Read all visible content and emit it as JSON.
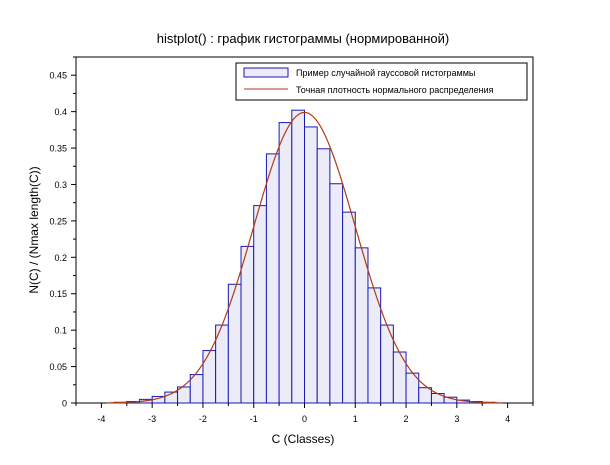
{
  "chart_data": {
    "type": "bar",
    "title": "histplot() : график гистограммы (нормированной)",
    "xlabel": "C (Classes)",
    "ylabel": "N(C) / (Nmax length(C))",
    "xlim": [
      -4.5,
      4.5
    ],
    "ylim": [
      0,
      0.475
    ],
    "xticks": [
      -4,
      -3,
      -2,
      -1,
      0,
      1,
      2,
      3,
      4
    ],
    "yticks": [
      0,
      0.05,
      0.1,
      0.15,
      0.2,
      0.25,
      0.3,
      0.35,
      0.4,
      0.45
    ],
    "grid": false,
    "legend_position": "top-right",
    "legend": [
      {
        "label": "Пример случайной гауссовой гистограммы",
        "kind": "bars"
      },
      {
        "label": "Точная плотность нормального распределения",
        "kind": "line"
      }
    ],
    "bar_edges": [
      -3.75,
      -3.5,
      -3.25,
      -3.0,
      -2.75,
      -2.5,
      -2.25,
      -2.0,
      -1.75,
      -1.5,
      -1.25,
      -1.0,
      -0.75,
      -0.5,
      -0.25,
      0.0,
      0.25,
      0.5,
      0.75,
      1.0,
      1.25,
      1.5,
      1.75,
      2.0,
      2.25,
      2.5,
      2.75,
      3.0,
      3.25,
      3.5,
      3.75
    ],
    "bar_values": [
      0.001,
      0.002,
      0.005,
      0.009,
      0.015,
      0.022,
      0.039,
      0.072,
      0.107,
      0.163,
      0.215,
      0.271,
      0.342,
      0.385,
      0.402,
      0.379,
      0.349,
      0.301,
      0.262,
      0.213,
      0.158,
      0.107,
      0.07,
      0.041,
      0.021,
      0.013,
      0.008,
      0.004,
      0.002,
      0.001
    ],
    "curve": {
      "type": "normal_pdf",
      "mean": 0,
      "std": 1,
      "x_range": [
        -3.9,
        3.9
      ]
    },
    "colors": {
      "bar_edge": "#1a1ab4",
      "bar_fill": "#ececf8",
      "curve": "#b23b14",
      "axis": "#000000"
    }
  }
}
